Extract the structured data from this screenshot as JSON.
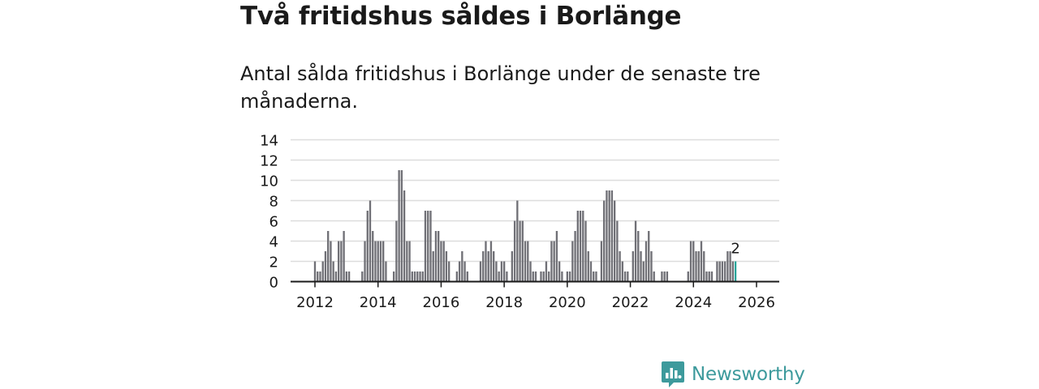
{
  "title": "Två fritidshus såldes i Borlänge",
  "subtitle": "Antal sålda fritidshus i Borlänge under de senaste tre månaderna.",
  "brand": {
    "name": "Newsworthy",
    "icon": "newsworthy-logo-icon",
    "color": "#3d9a9c"
  },
  "chart_data": {
    "type": "bar",
    "title": "",
    "xlabel": "",
    "ylabel": "",
    "ylim": [
      0,
      14
    ],
    "yticks": [
      0,
      2,
      4,
      6,
      8,
      10,
      12,
      14
    ],
    "grid": true,
    "x_start": {
      "year": 2012,
      "month": 1
    },
    "xtick_labels": [
      "2012",
      "2014",
      "2016",
      "2018",
      "2020",
      "2022",
      "2024",
      "2026"
    ],
    "bar_color": "#707076",
    "highlight_color": "#2aa59a",
    "highlight_label": "2",
    "values": [
      2,
      1,
      1,
      2,
      3,
      5,
      4,
      2,
      1,
      4,
      4,
      5,
      1,
      1,
      0,
      0,
      0,
      0,
      1,
      4,
      7,
      8,
      5,
      4,
      4,
      4,
      4,
      2,
      0,
      0,
      1,
      6,
      11,
      11,
      9,
      4,
      4,
      1,
      1,
      1,
      1,
      1,
      7,
      7,
      7,
      3,
      5,
      5,
      4,
      4,
      3,
      2,
      0,
      0,
      1,
      2,
      3,
      2,
      1,
      0,
      0,
      0,
      0,
      2,
      3,
      4,
      3,
      4,
      3,
      2,
      1,
      2,
      2,
      1,
      0,
      3,
      6,
      8,
      6,
      6,
      4,
      4,
      2,
      1,
      1,
      0,
      1,
      1,
      2,
      1,
      4,
      4,
      5,
      2,
      1,
      0,
      1,
      1,
      4,
      5,
      7,
      7,
      7,
      6,
      3,
      2,
      1,
      1,
      0,
      4,
      8,
      9,
      9,
      9,
      8,
      6,
      3,
      2,
      1,
      1,
      0,
      3,
      6,
      5,
      3,
      2,
      4,
      5,
      3,
      1,
      0,
      0,
      1,
      1,
      1,
      0,
      0,
      0,
      0,
      0,
      0,
      0,
      1,
      4,
      4,
      3,
      3,
      4,
      3,
      1,
      1,
      1,
      0,
      2,
      2,
      2,
      2,
      3,
      3,
      2,
      2
    ]
  }
}
